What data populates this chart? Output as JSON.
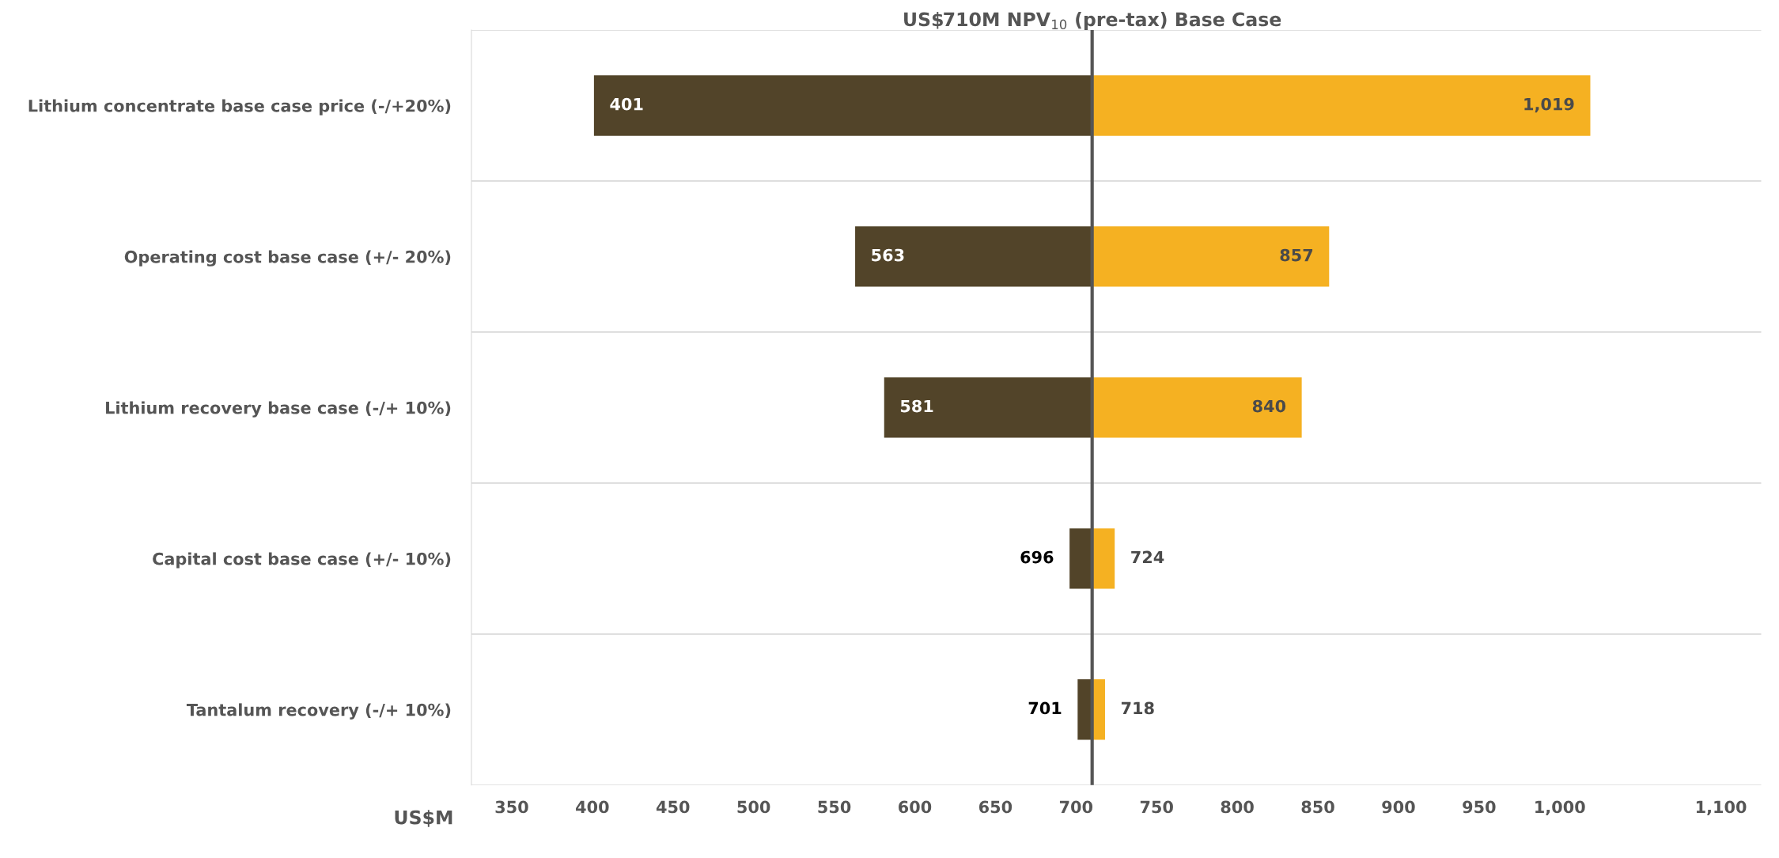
{
  "chart_data": {
    "type": "bar",
    "orientation": "horizontal",
    "categories": [
      "Lithium concentrate base case price (-/+20%)",
      "Operating cost base case (+/- 20%)",
      "Lithium recovery base case (-/+ 10%)",
      "Capital cost base case (+/- 10%)",
      "Tantalum recovery (-/+ 10%)"
    ],
    "series": [
      {
        "color": "#524429",
        "base": [
          710,
          710,
          710,
          710,
          710
        ],
        "values": [
          -309,
          -147,
          -129,
          -14,
          -9
        ],
        "value_labels": [
          "401",
          "563",
          "581",
          "696",
          "701"
        ]
      },
      {
        "color": "#f5b122",
        "base": [
          710,
          710,
          710,
          710,
          710
        ],
        "values": [
          309,
          147,
          130,
          14,
          8
        ],
        "value_labels": [
          "1,019",
          "857",
          "840",
          "724",
          "718"
        ]
      }
    ],
    "xlabel": "US$M",
    "xlim": [
      325,
      1125
    ],
    "xticks": [
      350,
      400,
      450,
      500,
      550,
      600,
      650,
      700,
      750,
      800,
      850,
      900,
      950,
      {
        "value": 1000,
        "label": "1,000"
      },
      {
        "value": 1100,
        "label": "1,100"
      }
    ],
    "ref_lines": [
      {
        "axis": "x",
        "value": 710,
        "label": "US$710M NPV$_{10}$ (pre-tax) Base Case",
        "color": "#555555"
      }
    ],
    "grid": "y",
    "legend": false
  }
}
